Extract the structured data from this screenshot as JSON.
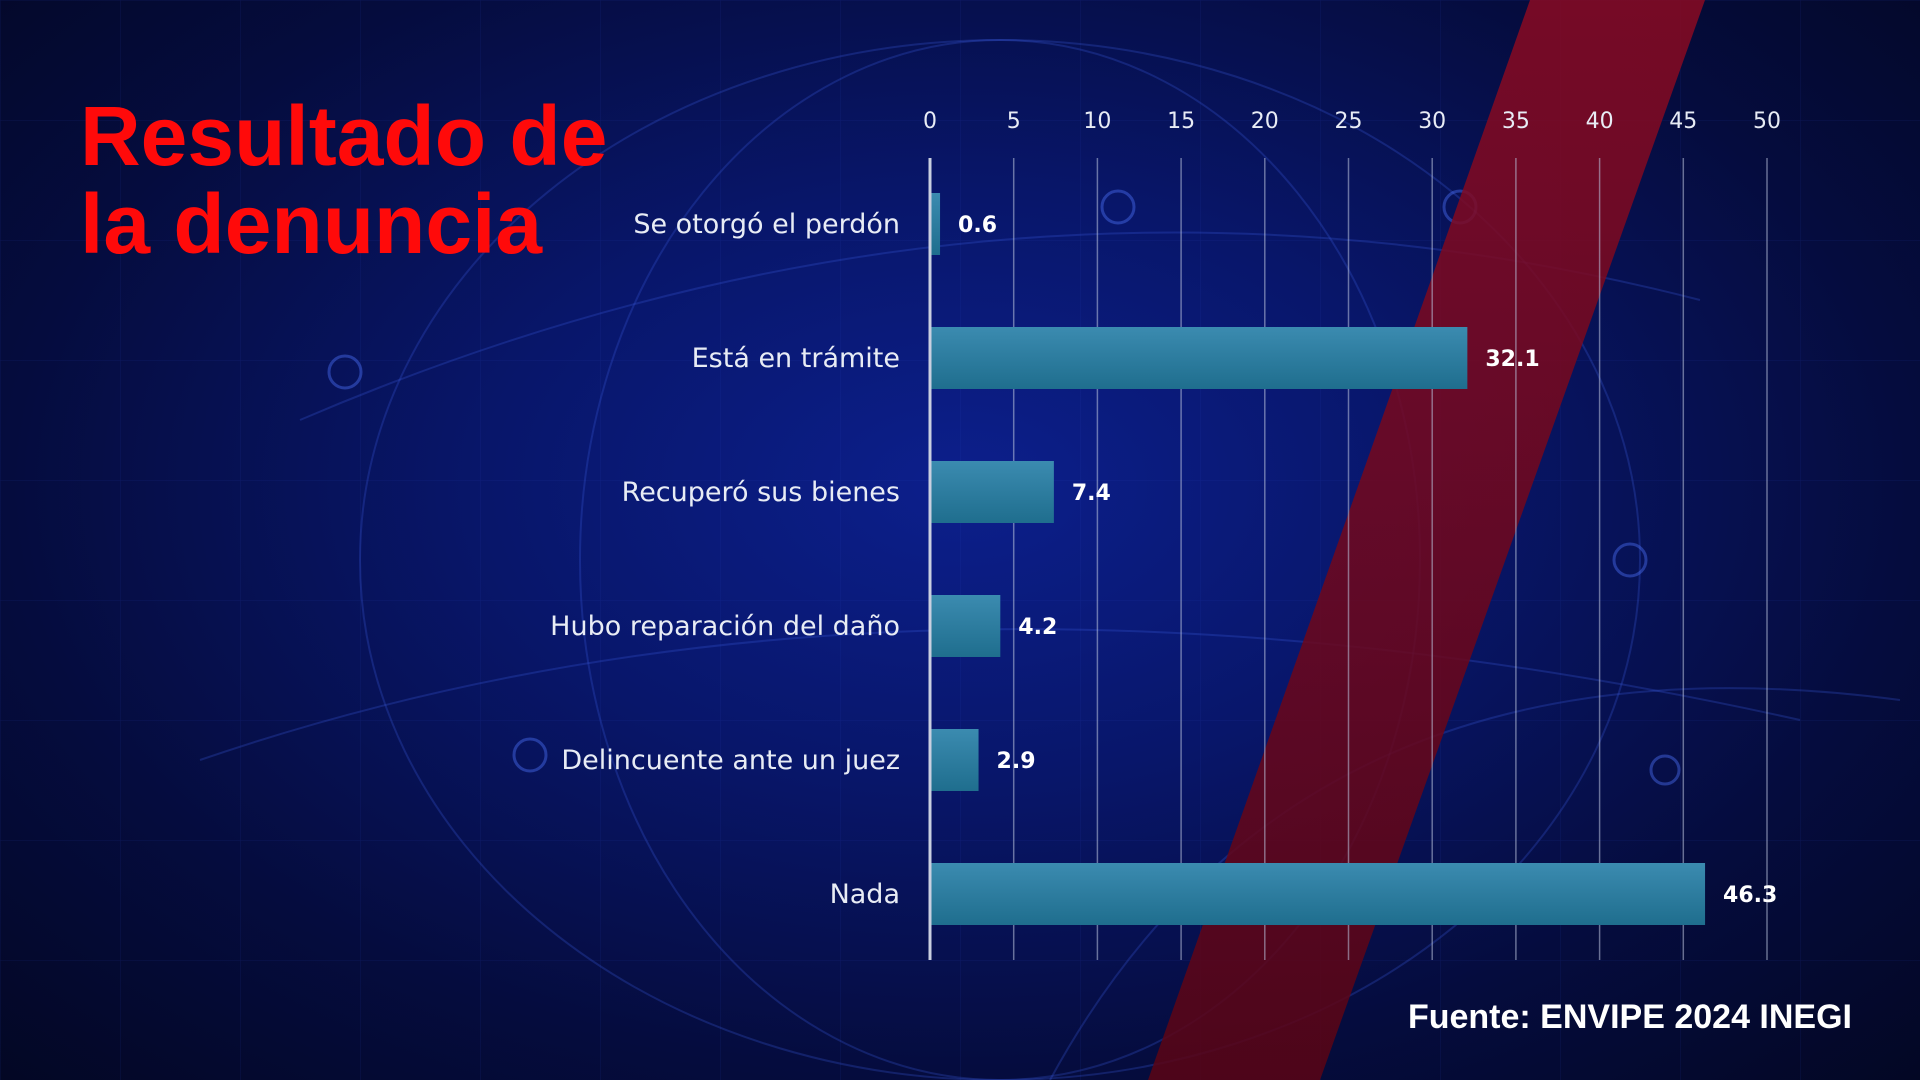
{
  "title_lines": [
    "Resultado de",
    "la denuncia"
  ],
  "source": "Fuente: ENVIPE 2024 INEGI",
  "colors": {
    "bar": "#1f6e8e",
    "title": "#ff0a0a",
    "accent_band": "#7a0a1e"
  },
  "chart_data": {
    "type": "bar",
    "orientation": "horizontal",
    "title": "Resultado de la denuncia",
    "categories": [
      "Se otorgó el perdón",
      "Está en trámite",
      "Recuperó sus bienes",
      "Hubo reparación del daño",
      "Delincuente ante un juez",
      "Nada"
    ],
    "values": [
      0.6,
      32.1,
      7.4,
      4.2,
      2.9,
      46.3
    ],
    "value_labels": [
      "0.6",
      "32.1",
      "7.4",
      "4.2",
      "2.9",
      "46.3"
    ],
    "xlim": [
      0,
      50
    ],
    "xticks": [
      "0",
      "5",
      "10",
      "15",
      "20",
      "25",
      "30",
      "35",
      "40",
      "45",
      "50"
    ],
    "grid": true,
    "axis_position": "top"
  }
}
